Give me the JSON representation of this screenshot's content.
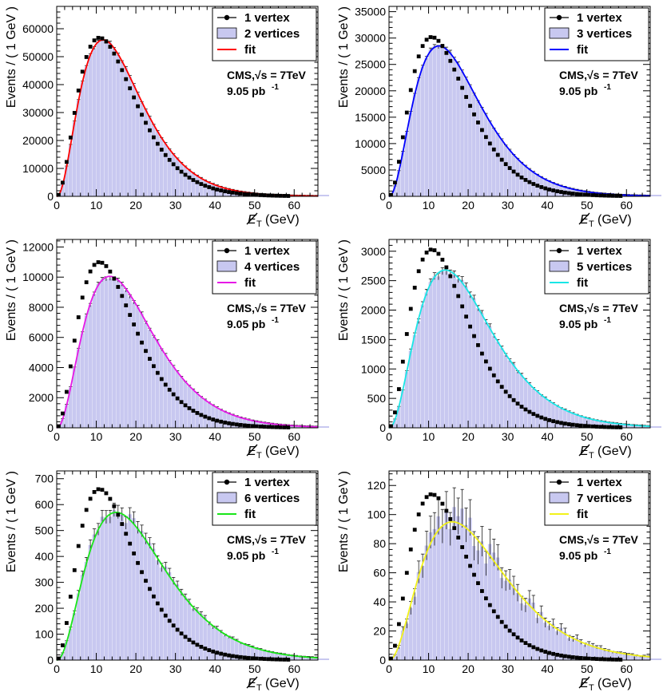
{
  "figure": {
    "ylabel": "Events / ( 1 GeV )",
    "xlabel_symbol": "E",
    "xlabel_sub": "T",
    "xlabel_unit": "(GeV)",
    "annotation": "CMS,√s = 7TeV",
    "luminosity": "9.05 pb",
    "luminosity_sup": "-1",
    "hist_color": "#c8c8f0",
    "reference_color": "#000000"
  },
  "chart_data": [
    {
      "type": "bar",
      "panel": "2 vertices",
      "xlim": [
        0,
        66
      ],
      "ylim": [
        0,
        68000
      ],
      "xticks": [
        0,
        10,
        20,
        30,
        40,
        50,
        60
      ],
      "yticks": [
        0,
        10000,
        20000,
        30000,
        40000,
        50000,
        60000
      ],
      "legend": [
        "1 vertex",
        "2 vertices",
        "fit"
      ],
      "fit_color": "#ff0000",
      "reference": {
        "name": "1 vertex",
        "peak": 56800,
        "mode": 10.8,
        "shape": 3.0,
        "tail": 5.0
      },
      "model": {
        "name": "2 vertices",
        "peak": 56000,
        "mode": 11.7,
        "shape": 3.0,
        "tail": 5.4
      },
      "noise": 0.01
    },
    {
      "type": "bar",
      "panel": "3 vertices",
      "xlim": [
        0,
        66
      ],
      "ylim": [
        0,
        36000
      ],
      "xticks": [
        0,
        10,
        20,
        30,
        40,
        50,
        60
      ],
      "yticks": [
        0,
        5000,
        10000,
        15000,
        20000,
        25000,
        30000,
        35000
      ],
      "legend": [
        "1 vertex",
        "3 vertices",
        "fit"
      ],
      "fit_color": "#0000ff",
      "reference": {
        "name": "1 vertex",
        "peak": 30200,
        "mode": 10.8,
        "shape": 3.0,
        "tail": 5.0
      },
      "model": {
        "name": "3 vertices",
        "peak": 28500,
        "mode": 12.6,
        "shape": 3.0,
        "tail": 6.0
      },
      "noise": 0.012
    },
    {
      "type": "bar",
      "panel": "4 vertices",
      "xlim": [
        0,
        66
      ],
      "ylim": [
        0,
        12500
      ],
      "xticks": [
        0,
        10,
        20,
        30,
        40,
        50,
        60
      ],
      "yticks": [
        0,
        2000,
        4000,
        6000,
        8000,
        10000,
        12000
      ],
      "legend": [
        "1 vertex",
        "4 vertices",
        "fit"
      ],
      "fit_color": "#e619e6",
      "reference": {
        "name": "1 vertex",
        "peak": 11000,
        "mode": 10.8,
        "shape": 3.0,
        "tail": 5.0
      },
      "model": {
        "name": "4 vertices",
        "peak": 10050,
        "mode": 13.4,
        "shape": 3.0,
        "tail": 6.5
      },
      "noise": 0.015
    },
    {
      "type": "bar",
      "panel": "5 vertices",
      "xlim": [
        0,
        66
      ],
      "ylim": [
        0,
        3200
      ],
      "xticks": [
        0,
        10,
        20,
        30,
        40,
        50,
        60
      ],
      "yticks": [
        0,
        500,
        1000,
        1500,
        2000,
        2500,
        3000
      ],
      "legend": [
        "1 vertex",
        "5 vertices",
        "fit"
      ],
      "fit_color": "#19e6e6",
      "reference": {
        "name": "1 vertex",
        "peak": 3030,
        "mode": 10.8,
        "shape": 3.0,
        "tail": 5.0
      },
      "model": {
        "name": "5 vertices",
        "peak": 2680,
        "mode": 14.2,
        "shape": 3.0,
        "tail": 7.0
      },
      "noise": 0.025
    },
    {
      "type": "bar",
      "panel": "6 vertices",
      "xlim": [
        0,
        66
      ],
      "ylim": [
        0,
        730
      ],
      "xticks": [
        0,
        10,
        20,
        30,
        40,
        50,
        60
      ],
      "yticks": [
        0,
        100,
        200,
        300,
        400,
        500,
        600,
        700
      ],
      "legend": [
        "1 vertex",
        "6 vertices",
        "fit"
      ],
      "fit_color": "#19e619",
      "reference": {
        "name": "1 vertex",
        "peak": 660,
        "mode": 10.8,
        "shape": 3.0,
        "tail": 5.0
      },
      "model": {
        "name": "6 vertices",
        "peak": 570,
        "mode": 15.0,
        "shape": 3.0,
        "tail": 7.5
      },
      "noise": 0.05
    },
    {
      "type": "bar",
      "panel": "7 vertices",
      "xlim": [
        0,
        66
      ],
      "ylim": [
        0,
        130
      ],
      "xticks": [
        0,
        10,
        20,
        30,
        40,
        50,
        60
      ],
      "yticks": [
        0,
        20,
        40,
        60,
        80,
        100,
        120
      ],
      "legend": [
        "1 vertex",
        "7 vertices",
        "fit"
      ],
      "fit_color": "#f2f21a",
      "reference": {
        "name": "1 vertex",
        "peak": 114,
        "mode": 10.8,
        "shape": 3.0,
        "tail": 5.0
      },
      "model": {
        "name": "7 vertices",
        "peak": 95,
        "mode": 16.0,
        "shape": 3.0,
        "tail": 8.0
      },
      "noise": 0.14
    }
  ]
}
